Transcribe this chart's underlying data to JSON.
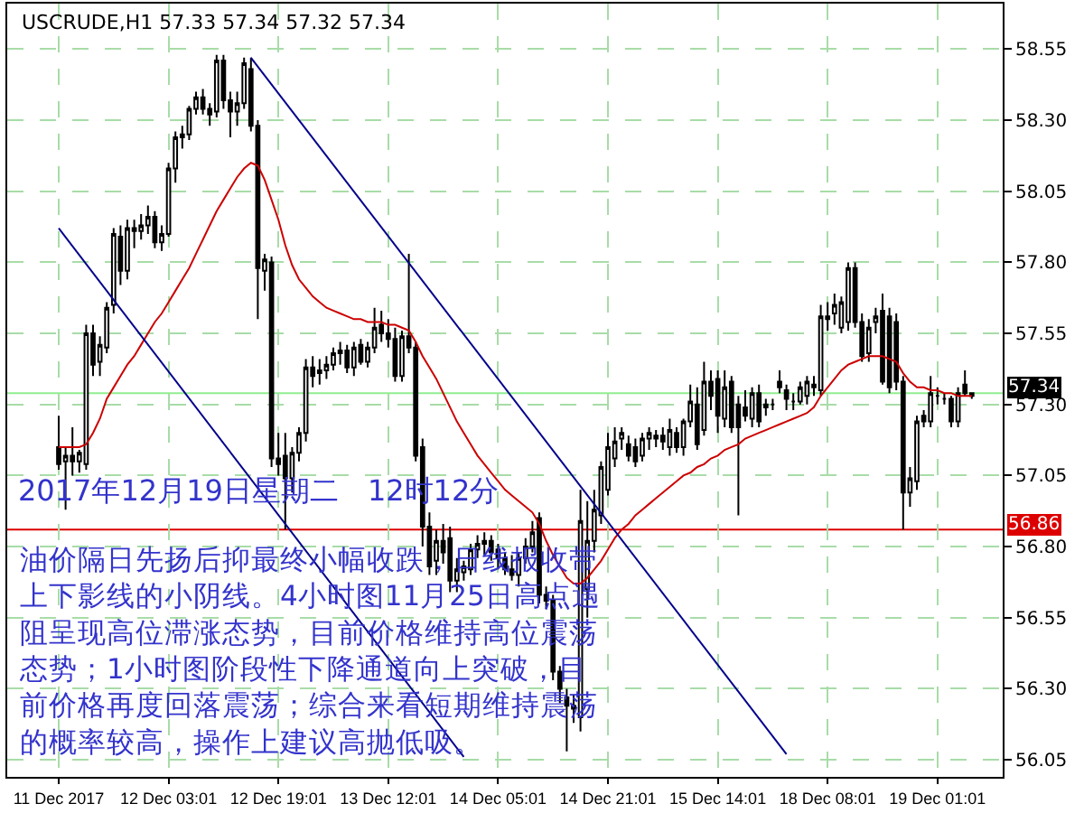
{
  "chart_data": {
    "type": "candlestick",
    "title": "USCRUDE,H1 57.33 57.34 57.32 57.34",
    "categories": [
      "11 Dec 2017",
      null,
      null,
      null,
      null,
      null,
      null,
      null,
      null,
      null,
      null,
      null,
      null,
      null,
      null,
      null,
      "12 Dec 03:01",
      null,
      null,
      null,
      null,
      null,
      null,
      null,
      null,
      null,
      null,
      null,
      null,
      null,
      null,
      null,
      "12 Dec 19:01",
      null,
      null,
      null,
      null,
      null,
      null,
      null,
      null,
      null,
      null,
      null,
      null,
      null,
      null,
      null,
      "13 Dec 12:01",
      null,
      null,
      null,
      null,
      null,
      null,
      null,
      null,
      null,
      null,
      null,
      null,
      null,
      null,
      null,
      "14 Dec 05:01",
      null,
      null,
      null,
      null,
      null,
      null,
      null,
      null,
      null,
      null,
      null,
      null,
      null,
      null,
      null,
      "14 Dec 21:01",
      null,
      null,
      null,
      null,
      null,
      null,
      null,
      null,
      null,
      null,
      null,
      null,
      null,
      null,
      null,
      "15 Dec 14:01",
      null,
      null,
      null,
      null,
      null,
      null,
      null,
      null,
      null,
      null,
      null,
      null,
      null,
      null,
      null,
      "18 Dec 08:01",
      null,
      null,
      null,
      null,
      null,
      null,
      null,
      null,
      null,
      null,
      null,
      null,
      null,
      null,
      null,
      "19 Dec 01:01",
      null,
      null,
      null,
      null,
      null
    ],
    "ohlc": [
      [
        57.15,
        57.26,
        57.07,
        57.09
      ],
      [
        57.1,
        57.15,
        56.93,
        57.12
      ],
      [
        57.12,
        57.22,
        57.05,
        57.1
      ],
      [
        57.1,
        57.14,
        57.06,
        57.13
      ],
      [
        57.09,
        57.58,
        57.07,
        57.55
      ],
      [
        57.55,
        57.58,
        57.4,
        57.44
      ],
      [
        57.45,
        57.54,
        57.4,
        57.51
      ],
      [
        57.5,
        57.66,
        57.48,
        57.64
      ],
      [
        57.65,
        57.92,
        57.62,
        57.9
      ],
      [
        57.89,
        57.93,
        57.72,
        57.77
      ],
      [
        57.77,
        57.95,
        57.74,
        57.92
      ],
      [
        57.92,
        57.95,
        57.85,
        57.91
      ],
      [
        57.91,
        57.97,
        57.88,
        57.93
      ],
      [
        57.93,
        58.0,
        57.9,
        57.96
      ],
      [
        57.96,
        57.98,
        57.85,
        57.87
      ],
      [
        57.87,
        57.93,
        57.84,
        57.9
      ],
      [
        57.9,
        58.15,
        57.89,
        58.13
      ],
      [
        58.13,
        58.26,
        58.08,
        58.24
      ],
      [
        58.24,
        58.28,
        58.2,
        58.25
      ],
      [
        58.25,
        58.35,
        58.23,
        58.34
      ],
      [
        58.34,
        58.4,
        58.32,
        58.38
      ],
      [
        58.38,
        58.41,
        58.32,
        58.34
      ],
      [
        58.34,
        58.36,
        58.28,
        58.32
      ],
      [
        58.33,
        58.53,
        58.31,
        58.51
      ],
      [
        58.51,
        58.53,
        58.34,
        58.37
      ],
      [
        58.37,
        58.4,
        58.24,
        58.33
      ],
      [
        58.33,
        58.4,
        58.28,
        58.36
      ],
      [
        58.36,
        58.52,
        58.34,
        58.5
      ],
      [
        58.48,
        58.52,
        58.26,
        58.28
      ],
      [
        58.28,
        58.3,
        57.6,
        57.78
      ],
      [
        57.77,
        57.83,
        57.7,
        57.81
      ],
      [
        57.8,
        57.82,
        57.08,
        57.11
      ],
      [
        57.11,
        57.2,
        57.05,
        57.09
      ],
      [
        57.12,
        57.2,
        56.86,
        57.04
      ],
      [
        57.04,
        57.15,
        56.99,
        57.13
      ],
      [
        57.13,
        57.22,
        57.1,
        57.2
      ],
      [
        57.2,
        57.46,
        57.17,
        57.43
      ],
      [
        57.43,
        57.47,
        57.36,
        57.4
      ],
      [
        57.41,
        57.46,
        57.37,
        57.42
      ],
      [
        57.42,
        57.47,
        57.39,
        57.44
      ],
      [
        57.44,
        57.5,
        57.42,
        57.48
      ],
      [
        57.48,
        57.52,
        57.44,
        57.49
      ],
      [
        57.49,
        57.51,
        57.41,
        57.43
      ],
      [
        57.43,
        57.52,
        57.4,
        57.5
      ],
      [
        57.51,
        57.53,
        57.44,
        57.45
      ],
      [
        57.45,
        57.52,
        57.43,
        57.5
      ],
      [
        57.5,
        57.64,
        57.48,
        57.57
      ],
      [
        57.58,
        57.63,
        57.52,
        57.55
      ],
      [
        57.55,
        57.6,
        57.5,
        57.53
      ],
      [
        57.53,
        57.57,
        57.38,
        57.4
      ],
      [
        57.4,
        57.56,
        57.38,
        57.54
      ],
      [
        57.54,
        57.83,
        57.48,
        57.5
      ],
      [
        57.5,
        57.52,
        57.1,
        57.12
      ],
      [
        57.15,
        57.18,
        56.8,
        56.87
      ],
      [
        56.87,
        56.92,
        56.7,
        56.73
      ],
      [
        56.75,
        56.86,
        56.7,
        56.82
      ],
      [
        56.82,
        56.88,
        56.74,
        56.78
      ],
      [
        56.83,
        56.87,
        56.64,
        56.68
      ],
      [
        56.68,
        56.76,
        56.64,
        56.72
      ],
      [
        56.71,
        56.75,
        56.68,
        56.73
      ],
      [
        56.72,
        56.81,
        56.7,
        56.79
      ],
      [
        56.79,
        56.84,
        56.76,
        56.81
      ],
      [
        56.81,
        56.85,
        56.77,
        56.82
      ],
      [
        56.82,
        56.84,
        56.75,
        56.78
      ],
      [
        56.79,
        56.81,
        56.72,
        56.76
      ],
      [
        56.76,
        56.78,
        56.7,
        56.72
      ],
      [
        56.72,
        56.77,
        56.68,
        56.7
      ],
      [
        56.7,
        56.78,
        56.66,
        56.76
      ],
      [
        56.76,
        56.83,
        56.74,
        56.8
      ],
      [
        56.8,
        56.89,
        56.78,
        56.85
      ],
      [
        56.9,
        56.92,
        56.6,
        56.63
      ],
      [
        56.63,
        56.66,
        56.58,
        56.61
      ],
      [
        56.61,
        56.63,
        56.33,
        56.36
      ],
      [
        56.36,
        56.38,
        56.25,
        56.3
      ],
      [
        56.27,
        56.3,
        56.08,
        56.24
      ],
      [
        56.24,
        56.28,
        56.18,
        56.23
      ],
      [
        56.2,
        57.0,
        56.15,
        56.89
      ],
      [
        56.65,
        56.96,
        56.55,
        56.82
      ],
      [
        56.82,
        57.0,
        56.78,
        56.93
      ],
      [
        56.91,
        57.1,
        56.88,
        57.08
      ],
      [
        57.0,
        57.2,
        56.98,
        57.15
      ],
      [
        57.11,
        57.22,
        57.08,
        57.17
      ],
      [
        57.18,
        57.22,
        57.14,
        57.2
      ],
      [
        57.16,
        57.19,
        57.1,
        57.12
      ],
      [
        57.15,
        57.18,
        57.08,
        57.1
      ],
      [
        57.12,
        57.2,
        57.1,
        57.18
      ],
      [
        57.18,
        57.22,
        57.14,
        57.2
      ],
      [
        57.18,
        57.21,
        57.15,
        57.19
      ],
      [
        57.19,
        57.22,
        57.14,
        57.17
      ],
      [
        57.15,
        57.25,
        57.12,
        57.21
      ],
      [
        57.2,
        57.22,
        57.13,
        57.15
      ],
      [
        57.15,
        57.25,
        57.12,
        57.24
      ],
      [
        57.24,
        57.37,
        57.22,
        57.31
      ],
      [
        57.3,
        57.36,
        57.14,
        57.16
      ],
      [
        57.21,
        57.45,
        57.19,
        57.38
      ],
      [
        57.38,
        57.42,
        57.28,
        57.33
      ],
      [
        57.39,
        57.42,
        57.2,
        57.26
      ],
      [
        57.25,
        57.42,
        57.22,
        57.36
      ],
      [
        57.38,
        57.4,
        57.2,
        57.22
      ],
      [
        57.3,
        57.33,
        56.91,
        57.22
      ],
      [
        57.29,
        57.35,
        57.24,
        57.26
      ],
      [
        57.25,
        57.36,
        57.22,
        57.34
      ],
      [
        57.34,
        57.37,
        57.22,
        57.24
      ],
      [
        57.29,
        57.32,
        57.26,
        57.3
      ],
      [
        57.3,
        57.32,
        57.28,
        57.3
      ],
      [
        57.38,
        57.42,
        57.34,
        57.36
      ],
      [
        57.35,
        57.37,
        57.28,
        57.32
      ],
      [
        57.31,
        57.34,
        57.28,
        57.31
      ],
      [
        57.31,
        57.38,
        57.3,
        57.36
      ],
      [
        57.33,
        57.4,
        57.3,
        57.38
      ],
      [
        57.36,
        57.4,
        57.33,
        57.37
      ],
      [
        57.35,
        57.65,
        57.33,
        57.61
      ],
      [
        57.61,
        57.66,
        57.56,
        57.6
      ],
      [
        57.62,
        57.69,
        57.58,
        57.65
      ],
      [
        57.57,
        57.68,
        57.55,
        57.66
      ],
      [
        57.59,
        57.8,
        57.56,
        57.78
      ],
      [
        57.78,
        57.8,
        57.57,
        57.59
      ],
      [
        57.59,
        57.62,
        57.45,
        57.47
      ],
      [
        57.48,
        57.6,
        57.45,
        57.57
      ],
      [
        57.59,
        57.64,
        57.55,
        57.61
      ],
      [
        57.63,
        57.69,
        57.37,
        57.38
      ],
      [
        57.61,
        57.64,
        57.34,
        57.36
      ],
      [
        57.59,
        57.62,
        57.35,
        57.38
      ],
      [
        57.38,
        57.4,
        56.86,
        56.99
      ],
      [
        56.99,
        57.08,
        56.94,
        57.04
      ],
      [
        57.03,
        57.26,
        57.0,
        57.24
      ],
      [
        57.26,
        57.28,
        57.22,
        57.24
      ],
      [
        57.24,
        57.4,
        57.22,
        57.34
      ],
      [
        57.33,
        57.36,
        57.3,
        57.33
      ],
      [
        57.32,
        57.34,
        57.3,
        57.32
      ],
      [
        57.32,
        57.33,
        57.22,
        57.24
      ],
      [
        57.24,
        57.36,
        57.22,
        57.34
      ],
      [
        57.37,
        57.42,
        57.33,
        57.34
      ],
      [
        57.33,
        57.34,
        57.32,
        57.34
      ]
    ],
    "series": [
      {
        "type": "line",
        "color": "#cc0000",
        "values": [
          57.15,
          57.15,
          57.15,
          57.15,
          57.16,
          57.2,
          57.25,
          57.32,
          57.36,
          57.4,
          57.44,
          57.47,
          57.51,
          57.55,
          57.59,
          57.62,
          57.66,
          57.7,
          57.74,
          57.78,
          57.83,
          57.88,
          57.93,
          57.98,
          58.02,
          58.06,
          58.1,
          58.13,
          58.15,
          58.14,
          58.09,
          58.02,
          57.95,
          57.86,
          57.79,
          57.74,
          57.71,
          57.68,
          57.66,
          57.64,
          57.63,
          57.62,
          57.61,
          57.6,
          57.6,
          57.59,
          57.59,
          57.59,
          57.58,
          57.58,
          57.57,
          57.56,
          57.52,
          57.47,
          57.43,
          57.39,
          57.34,
          57.29,
          57.24,
          57.2,
          57.16,
          57.12,
          57.09,
          57.06,
          57.03,
          57.0,
          56.98,
          56.96,
          56.94,
          56.92,
          56.88,
          56.82,
          56.77,
          56.73,
          56.69,
          56.67,
          56.67,
          56.69,
          56.72,
          56.75,
          56.79,
          56.83,
          56.86,
          56.88,
          56.91,
          56.93,
          56.95,
          56.97,
          56.99,
          57.01,
          57.03,
          57.05,
          57.06,
          57.08,
          57.09,
          57.11,
          57.12,
          57.14,
          57.15,
          57.16,
          57.18,
          57.19,
          57.2,
          57.21,
          57.22,
          57.23,
          57.24,
          57.25,
          57.26,
          57.27,
          57.29,
          57.33,
          57.36,
          57.39,
          57.42,
          57.44,
          57.45,
          57.46,
          57.47,
          57.47,
          57.47,
          57.46,
          57.45,
          57.41,
          57.38,
          57.36,
          57.36,
          57.35,
          57.35,
          57.34,
          57.34,
          57.33,
          57.33,
          57.33
        ]
      },
      {
        "type": "line",
        "color": "#00008b",
        "values": [
          57.92,
          null,
          null,
          null,
          null,
          null,
          null,
          null,
          null,
          null,
          null,
          null,
          null,
          null,
          null,
          null,
          null,
          null,
          null,
          null,
          null,
          null,
          null,
          null,
          null,
          null,
          null,
          null,
          null,
          null,
          null,
          null,
          null,
          null,
          null,
          null,
          null,
          null,
          null,
          null,
          null,
          null,
          null,
          null,
          null,
          null,
          null,
          null,
          null,
          null,
          null,
          null,
          null,
          null,
          null,
          null,
          null,
          null,
          null,
          56.06,
          null,
          null,
          null,
          null,
          null,
          null,
          null,
          null,
          null,
          null,
          null,
          null,
          null,
          null,
          null,
          null,
          null,
          null,
          null,
          null,
          null,
          null,
          null,
          null,
          null,
          null,
          null,
          null,
          null,
          null,
          null,
          null,
          null,
          null,
          null,
          null,
          null,
          null,
          null,
          null,
          null,
          null,
          null,
          null,
          null,
          null,
          null,
          null,
          null,
          null,
          null,
          null,
          null,
          null,
          null,
          null,
          null,
          null,
          null,
          null,
          null,
          null,
          null,
          null,
          null,
          null,
          null,
          null,
          null,
          null,
          null,
          null,
          null,
          null
        ]
      },
      {
        "type": "line",
        "color": "#00008b",
        "values": [
          null,
          null,
          null,
          null,
          null,
          null,
          null,
          null,
          null,
          null,
          null,
          null,
          null,
          null,
          null,
          null,
          null,
          null,
          null,
          null,
          null,
          null,
          null,
          null,
          null,
          null,
          null,
          null,
          58.52,
          null,
          null,
          null,
          null,
          null,
          null,
          null,
          null,
          null,
          null,
          null,
          null,
          null,
          null,
          null,
          null,
          null,
          null,
          null,
          null,
          null,
          null,
          null,
          null,
          null,
          null,
          null,
          null,
          null,
          null,
          null,
          null,
          null,
          null,
          null,
          null,
          null,
          null,
          null,
          null,
          null,
          null,
          null,
          null,
          null,
          null,
          null,
          null,
          null,
          null,
          null,
          null,
          null,
          null,
          null,
          null,
          null,
          null,
          null,
          null,
          null,
          null,
          null,
          null,
          null,
          null,
          null,
          null,
          null,
          null,
          null,
          null,
          null,
          null,
          null,
          null,
          null,
          56.07,
          null,
          null,
          null,
          null,
          null,
          null,
          null,
          null,
          null,
          null,
          null,
          null,
          null,
          null,
          null,
          null,
          null,
          null,
          null,
          null,
          null,
          null,
          null,
          null,
          null,
          null,
          null
        ]
      }
    ],
    "ylim": [
      55.99,
      58.71
    ],
    "yticks": [
      56.05,
      {
        "value": 56.3,
        "label": "56.30"
      },
      56.55,
      {
        "value": 56.8,
        "label": "56.80"
      },
      57.05,
      {
        "value": 57.3,
        "label": "57.30"
      },
      57.55,
      {
        "value": 57.8,
        "label": "57.80"
      },
      58.05,
      {
        "value": 58.3,
        "label": "58.30"
      },
      58.55
    ],
    "grid": true,
    "ref_lines": [
      {
        "axis": "y",
        "value": 57.34,
        "label": "57.34",
        "color": "#90ee90"
      },
      {
        "axis": "y",
        "value": 56.86,
        "label": "56.86",
        "color": "#dd0000"
      }
    ],
    "annotations": [
      "2017年12月19日星期二　12时12分",
      "油价隔日先扬后抑最终小幅收跌，日线报收带上下影线的小阴线。4小时图11月25日高点遇阻呈现高位滞涨态势，目前价格维持高位震荡态势；1小时图阶段性下降通道向上突破，目前价格再度回落震荡；综合来看短期维持震荡的概率较高，操作上建议高抛低吸。"
    ]
  }
}
